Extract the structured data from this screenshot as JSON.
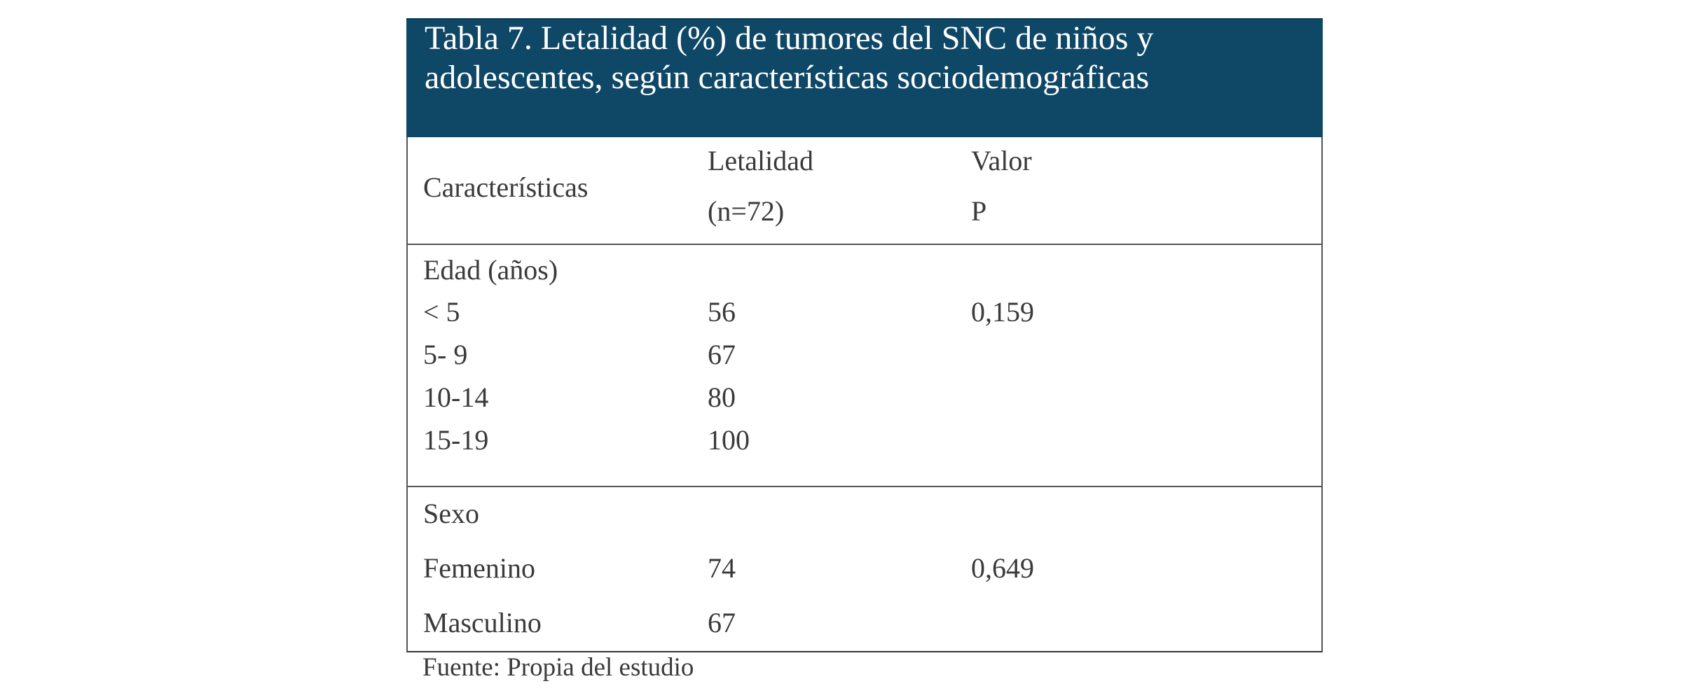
{
  "title": {
    "line1": "Tabla 7. Letalidad (%) de tumores del SNC de niños y",
    "line2": "adolescentes, según características sociodemográficas"
  },
  "header": {
    "col1": "Características",
    "col2_line1": "Letalidad",
    "col2_line2": "(n=72)",
    "col3_line1": "Valor",
    "col3_line2": "P"
  },
  "sections": [
    {
      "heading": "Edad (años)",
      "rows": [
        {
          "label": "< 5",
          "value": "56",
          "p": "0,159"
        },
        {
          "label": "5- 9",
          "value": "67",
          "p": ""
        },
        {
          "label": "10-14",
          "value": "80",
          "p": ""
        },
        {
          "label": "15-19",
          "value": "100",
          "p": ""
        }
      ]
    },
    {
      "heading": "Sexo",
      "rows": [
        {
          "label": "Femenino",
          "value": "74",
          "p": "0,649"
        },
        {
          "label": "Masculino",
          "value": "67",
          "p": ""
        }
      ]
    }
  ],
  "source": "Fuente: Propia del estudio",
  "colors": {
    "title_bg": "#0f4766",
    "title_text": "#ffffff",
    "body_text": "#3a3a3a"
  }
}
